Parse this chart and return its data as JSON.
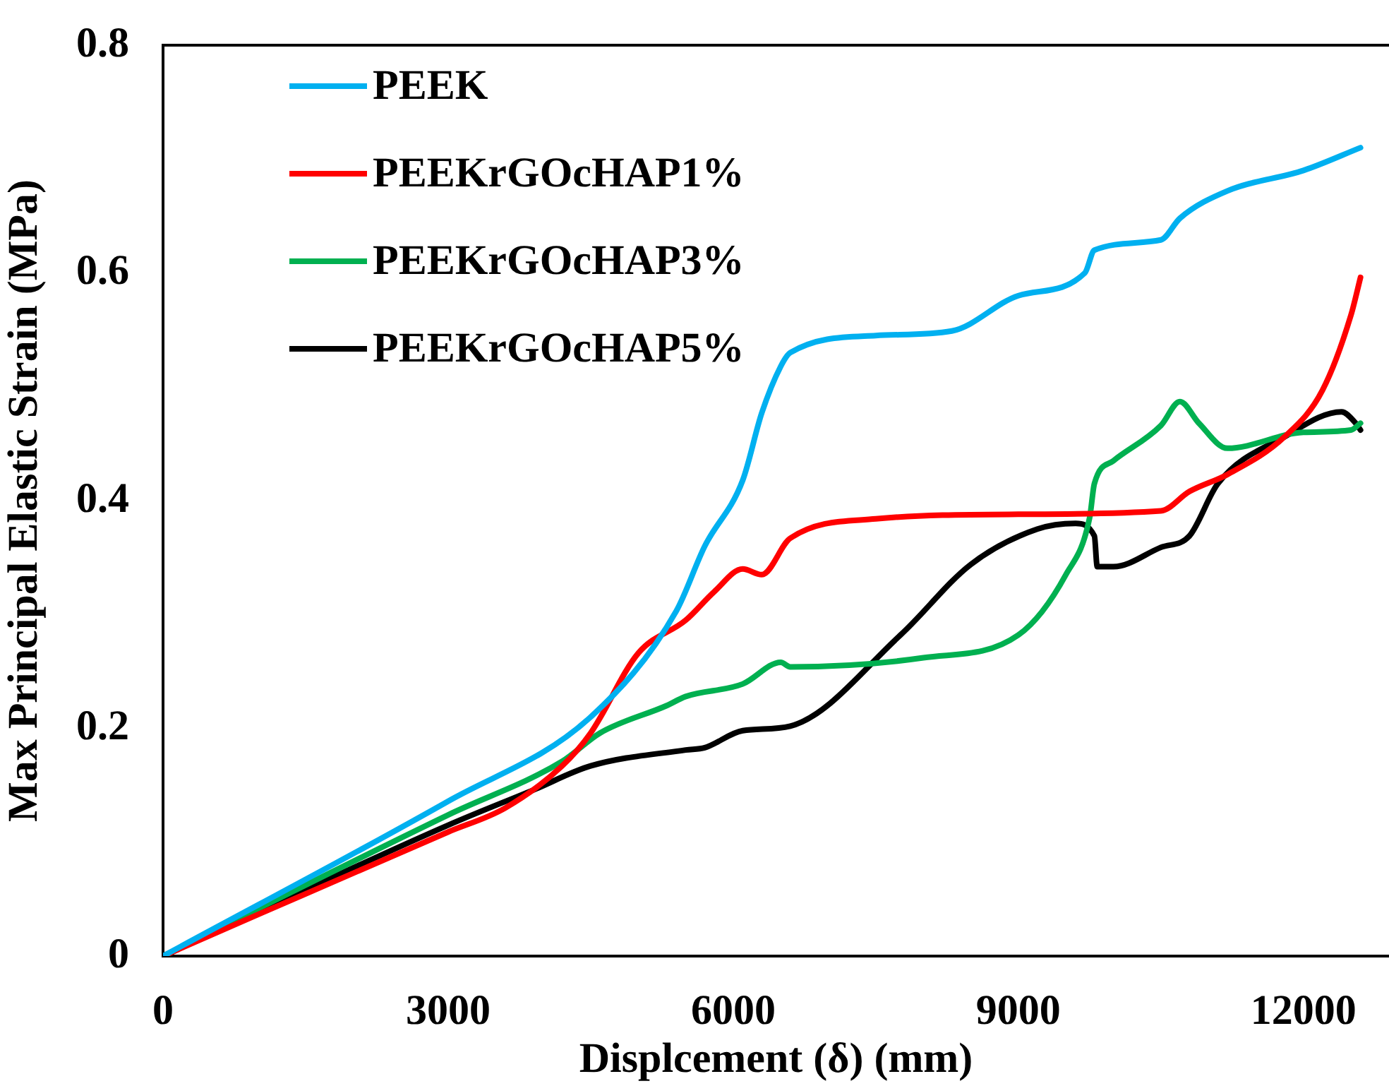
{
  "chart_data": {
    "type": "line",
    "xlabel": "Displcement (δ) (mm)",
    "ylabel": "Max Principal Elastic Strain (MPa)",
    "xlim": [
      0,
      12900
    ],
    "xticks": [
      0,
      3000,
      6000,
      9000,
      12000
    ],
    "ylim": [
      0,
      0.8
    ],
    "yticks": [
      0,
      0.2,
      0.4,
      0.6,
      0.8
    ],
    "grid": false,
    "legend": "top left",
    "marker": "none",
    "line_style": "solid",
    "series": [
      {
        "name": "PEEK",
        "color": "#00b0f0",
        "x": [
          0,
          3000,
          4500,
          5400,
          5700,
          6100,
          6300,
          6500,
          6600,
          7500,
          8300,
          9000,
          9700,
          9800,
          10500,
          10700,
          11200,
          12000,
          12600
        ],
        "values": [
          0,
          0.136,
          0.21,
          0.303,
          0.36,
          0.418,
          0.477,
          0.518,
          0.53,
          0.545,
          0.549,
          0.58,
          0.6,
          0.62,
          0.629,
          0.648,
          0.672,
          0.69,
          0.71
        ]
      },
      {
        "name": "PEEKrGOcHAP1%",
        "color": "#ff0000",
        "x": [
          0,
          3000,
          3600,
          4200,
          4500,
          5000,
          5500,
          5800,
          6100,
          6300,
          6600,
          7500,
          9000,
          10500,
          10800,
          11200,
          11800,
          12200,
          12500,
          12600
        ],
        "values": [
          0,
          0.109,
          0.13,
          0.167,
          0.196,
          0.266,
          0.295,
          0.32,
          0.34,
          0.335,
          0.367,
          0.384,
          0.388,
          0.391,
          0.408,
          0.423,
          0.456,
          0.497,
          0.563,
          0.596
        ]
      },
      {
        "name": "PEEKrGOcHAP3%",
        "color": "#00b050",
        "x": [
          0,
          3000,
          4200,
          4600,
          5300,
          5500,
          6100,
          6500,
          6600,
          8000,
          9000,
          9500,
          9750,
          9800,
          10000,
          10500,
          10700,
          10900,
          11200,
          12000,
          12500,
          12600
        ],
        "values": [
          0,
          0.124,
          0.171,
          0.196,
          0.22,
          0.228,
          0.239,
          0.258,
          0.254,
          0.262,
          0.282,
          0.335,
          0.385,
          0.415,
          0.435,
          0.466,
          0.487,
          0.468,
          0.446,
          0.46,
          0.462,
          0.468
        ]
      },
      {
        "name": "PEEKrGOcHAP5%",
        "color": "#000000",
        "x": [
          0,
          3000,
          3900,
          4500,
          5500,
          5700,
          6100,
          6600,
          7760,
          8500,
          9200,
          9600,
          9800,
          9830,
          10000,
          10500,
          10800,
          11100,
          11800,
          12400,
          12550,
          12600
        ],
        "values": [
          0,
          0.115,
          0.146,
          0.167,
          0.181,
          0.183,
          0.198,
          0.202,
          0.282,
          0.344,
          0.375,
          0.38,
          0.369,
          0.342,
          0.342,
          0.359,
          0.369,
          0.415,
          0.456,
          0.478,
          0.468,
          0.462
        ]
      }
    ]
  }
}
